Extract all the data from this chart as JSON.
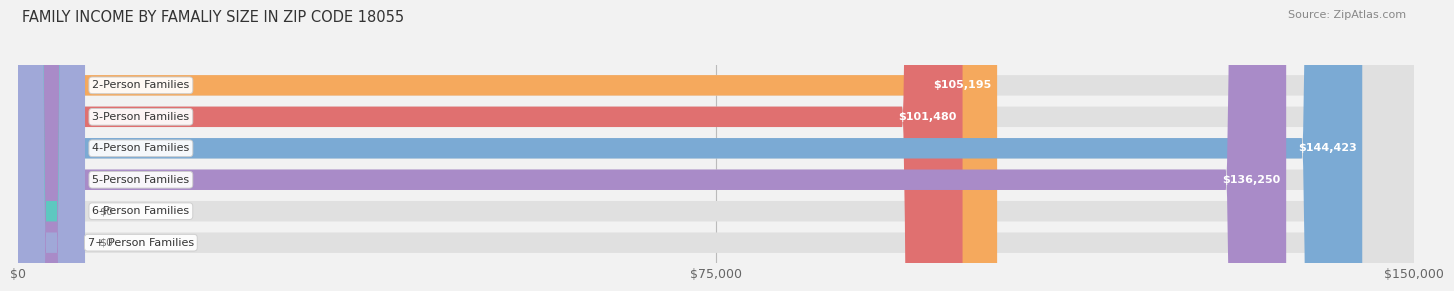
{
  "title": "FAMILY INCOME BY FAMALIY SIZE IN ZIP CODE 18055",
  "source": "Source: ZipAtlas.com",
  "categories": [
    "2-Person Families",
    "3-Person Families",
    "4-Person Families",
    "5-Person Families",
    "6-Person Families",
    "7+ Person Families"
  ],
  "values": [
    105195,
    101480,
    144423,
    136250,
    0,
    0
  ],
  "value_labels": [
    "$105,195",
    "$101,480",
    "$144,423",
    "$136,250",
    "$0",
    "$0"
  ],
  "bar_colors": [
    "#F5A95D",
    "#E07070",
    "#7BAAD4",
    "#A98BC8",
    "#5DC8C0",
    "#A0A8D8"
  ],
  "background_color": "#f2f2f2",
  "bar_bg_color": "#e0e0e0",
  "xlim": [
    0,
    150000
  ],
  "xticks": [
    0,
    75000,
    150000
  ],
  "xticklabels": [
    "$0",
    "$75,000",
    "$150,000"
  ],
  "bar_height": 0.65,
  "label_fontsize": 8.0,
  "value_fontsize": 8.0,
  "title_fontsize": 10.5,
  "source_fontsize": 8.0
}
